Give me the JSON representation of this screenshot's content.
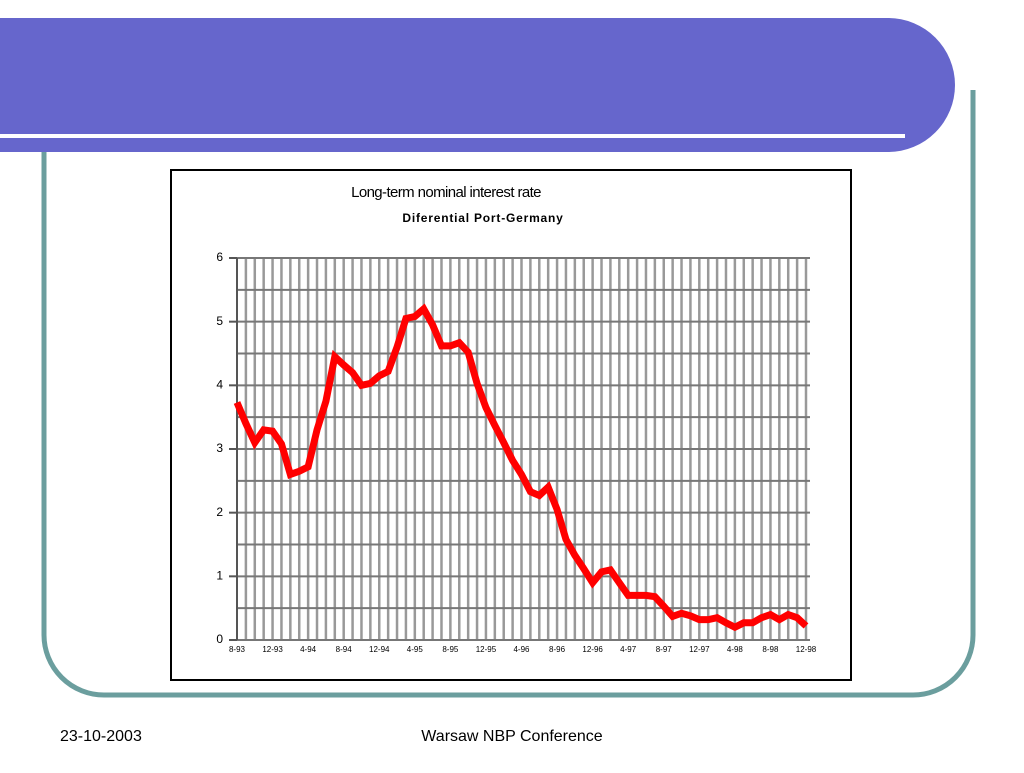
{
  "chart_data": {
    "type": "line",
    "title": "Long-term nominal interest rate",
    "subtitle": "Diferential Port-Germany",
    "categories": [
      "8-93",
      null,
      null,
      null,
      "12-93",
      null,
      null,
      null,
      "4-94",
      null,
      null,
      null,
      "8-94",
      null,
      null,
      null,
      "12-94",
      null,
      null,
      null,
      "4-95",
      null,
      null,
      null,
      "8-95",
      null,
      null,
      null,
      "12-95",
      null,
      null,
      null,
      "4-96",
      null,
      null,
      null,
      "8-96",
      null,
      null,
      null,
      "12-96",
      null,
      null,
      null,
      "4-97",
      null,
      null,
      null,
      "8-97",
      null,
      null,
      null,
      "12-97",
      null,
      null,
      null,
      "4-98",
      null,
      null,
      null,
      "8-98",
      null,
      null,
      null,
      "12-98"
    ],
    "series": [
      {
        "name": "Diferential Port-Germany",
        "color": "#ff0000",
        "values": [
          3.73,
          3.4,
          3.1,
          3.3,
          3.28,
          3.08,
          2.6,
          2.65,
          2.72,
          3.3,
          3.75,
          4.45,
          4.32,
          4.2,
          4.0,
          4.03,
          4.15,
          4.22,
          4.6,
          5.05,
          5.08,
          5.2,
          4.95,
          4.62,
          4.62,
          4.67,
          4.52,
          4.03,
          3.65,
          3.37,
          3.1,
          2.82,
          2.6,
          2.33,
          2.27,
          2.4,
          2.05,
          1.58,
          1.33,
          1.12,
          0.9,
          1.07,
          1.1,
          0.9,
          0.7,
          0.7,
          0.7,
          0.68,
          0.53,
          0.37,
          0.42,
          0.38,
          0.32,
          0.32,
          0.35,
          0.27,
          0.2,
          0.27,
          0.27,
          0.35,
          0.4,
          0.32,
          0.4,
          0.35,
          0.22
        ]
      }
    ],
    "ylim": [
      0,
      6
    ],
    "yticks": [
      0,
      1,
      2,
      3,
      4,
      5,
      6
    ],
    "grid": true
  },
  "footer": {
    "date": "23-10-2003",
    "text": "Warsaw NBP Conference"
  }
}
